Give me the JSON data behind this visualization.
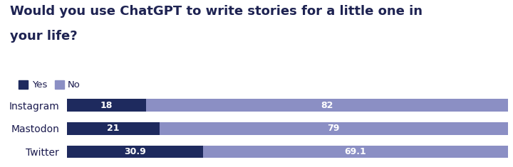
{
  "title_line1": "Would you use ChatGPT to write stories for a little one in",
  "title_line2": "your life?",
  "title_fontsize": 13,
  "title_fontweight": "bold",
  "title_color": "#1e2352",
  "categories": [
    "Instagram",
    "Mastodon",
    "Twitter"
  ],
  "yes_values": [
    18,
    21,
    30.9
  ],
  "no_values": [
    82,
    79,
    69.1
  ],
  "yes_labels": [
    "18",
    "21",
    "30.9"
  ],
  "no_labels": [
    "82",
    "79",
    "69.1"
  ],
  "yes_color": "#1e2a5e",
  "no_color": "#8b8fc4",
  "label_color_yes": "#ffffff",
  "label_color_no": "#ffffff",
  "label_fontsize": 9,
  "category_fontsize": 10,
  "category_color": "#1a1a4e",
  "legend_yes": "Yes",
  "legend_no": "No",
  "background_color": "#ffffff",
  "bar_height": 0.52,
  "xlim": [
    0,
    100
  ]
}
